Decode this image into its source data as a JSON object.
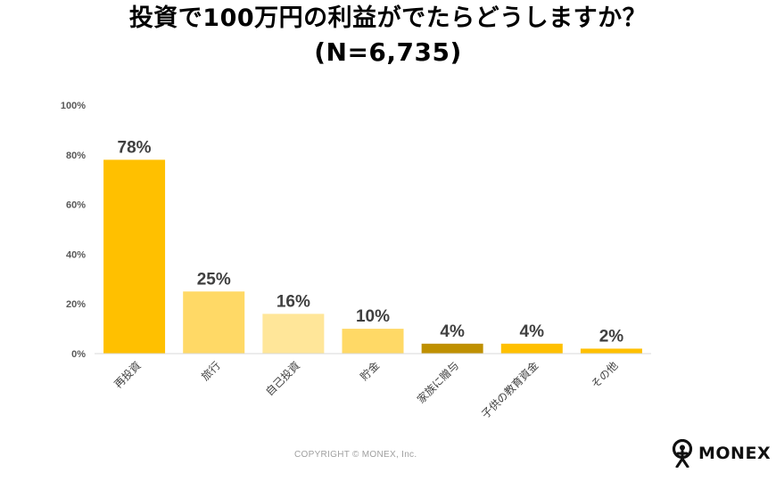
{
  "title": {
    "line1": "投資で100万円の利益がでたらどうしますか？",
    "line2": "(N=6,735)"
  },
  "chart_data": {
    "type": "bar",
    "categories": [
      "再投資",
      "旅行",
      "自己投資",
      "貯金",
      "家族に贈与",
      "子供の教育資金",
      "その他"
    ],
    "values": [
      78,
      25,
      16,
      10,
      4,
      4,
      2
    ],
    "value_labels": [
      "78%",
      "25%",
      "16%",
      "10%",
      "4%",
      "4%",
      "2%"
    ],
    "bar_colors": [
      "#FFC000",
      "#FFD966",
      "#FFE699",
      "#FFD966",
      "#BF9000",
      "#FFC000",
      "#FFC000"
    ],
    "ylim": [
      0,
      100
    ],
    "yticks": [
      0,
      20,
      40,
      60,
      80,
      100
    ],
    "ytick_labels": [
      "0%",
      "20%",
      "40%",
      "60%",
      "80%",
      "100%"
    ],
    "grid": false,
    "legend": "none"
  },
  "footer": {
    "copyright": "COPYRIGHT © MONEX, Inc.",
    "logo_text": "MONEX",
    "logo_icon": "monex-figure-icon"
  }
}
